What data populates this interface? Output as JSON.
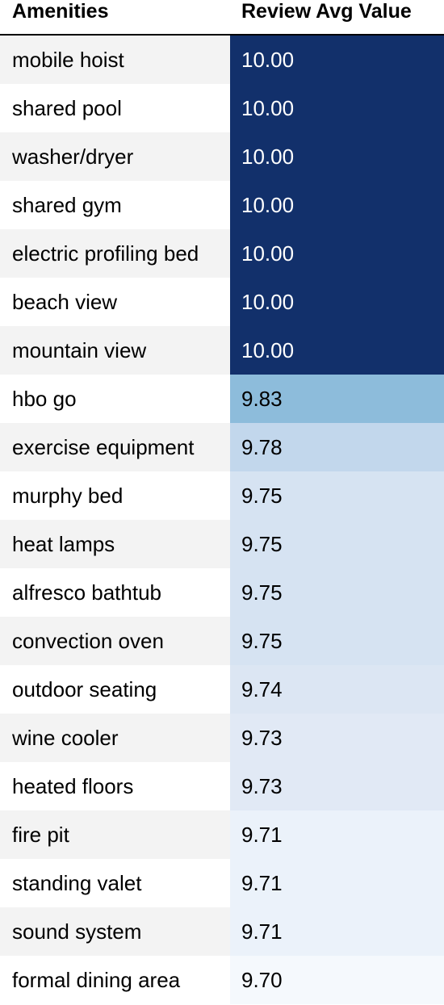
{
  "chart_data": {
    "type": "table",
    "columns": [
      "Amenities",
      "Review Avg Value"
    ],
    "rows": [
      {
        "amenity": "mobile hoist",
        "value": "10.00",
        "bg": "#12306b",
        "fg": "#ffffff"
      },
      {
        "amenity": "shared pool",
        "value": "10.00",
        "bg": "#12306b",
        "fg": "#ffffff"
      },
      {
        "amenity": "washer/dryer",
        "value": "10.00",
        "bg": "#12306b",
        "fg": "#ffffff"
      },
      {
        "amenity": "shared gym",
        "value": "10.00",
        "bg": "#12306b",
        "fg": "#ffffff"
      },
      {
        "amenity": "electric profiling bed",
        "value": "10.00",
        "bg": "#12306b",
        "fg": "#ffffff"
      },
      {
        "amenity": "beach view",
        "value": "10.00",
        "bg": "#12306b",
        "fg": "#ffffff"
      },
      {
        "amenity": "mountain view",
        "value": "10.00",
        "bg": "#12306b",
        "fg": "#ffffff"
      },
      {
        "amenity": "hbo go",
        "value": "9.83",
        "bg": "#8dbcdb",
        "fg": "#000000"
      },
      {
        "amenity": "exercise equipment",
        "value": "9.78",
        "bg": "#c2d7ec",
        "fg": "#000000"
      },
      {
        "amenity": "murphy bed",
        "value": "9.75",
        "bg": "#d6e3f2",
        "fg": "#000000"
      },
      {
        "amenity": "heat lamps",
        "value": "9.75",
        "bg": "#d6e3f2",
        "fg": "#000000"
      },
      {
        "amenity": "alfresco bathtub",
        "value": "9.75",
        "bg": "#d6e3f2",
        "fg": "#000000"
      },
      {
        "amenity": "convection oven",
        "value": "9.75",
        "bg": "#d6e3f2",
        "fg": "#000000"
      },
      {
        "amenity": "outdoor seating",
        "value": "9.74",
        "bg": "#dce6f3",
        "fg": "#000000"
      },
      {
        "amenity": "wine cooler",
        "value": "9.73",
        "bg": "#e1e9f5",
        "fg": "#000000"
      },
      {
        "amenity": "heated floors",
        "value": "9.73",
        "bg": "#e1e9f5",
        "fg": "#000000"
      },
      {
        "amenity": "fire pit",
        "value": "9.71",
        "bg": "#ebf2fa",
        "fg": "#000000"
      },
      {
        "amenity": "standing valet",
        "value": "9.71",
        "bg": "#ebf2fa",
        "fg": "#000000"
      },
      {
        "amenity": "sound system",
        "value": "9.71",
        "bg": "#ebf2fa",
        "fg": "#000000"
      },
      {
        "amenity": "formal dining area",
        "value": "9.70",
        "bg": "#f5f9fd",
        "fg": "#000000"
      }
    ]
  },
  "colors": {
    "stripe_even": "#f3f3f3",
    "stripe_odd": "#ffffff",
    "header_rule": "#000000"
  }
}
